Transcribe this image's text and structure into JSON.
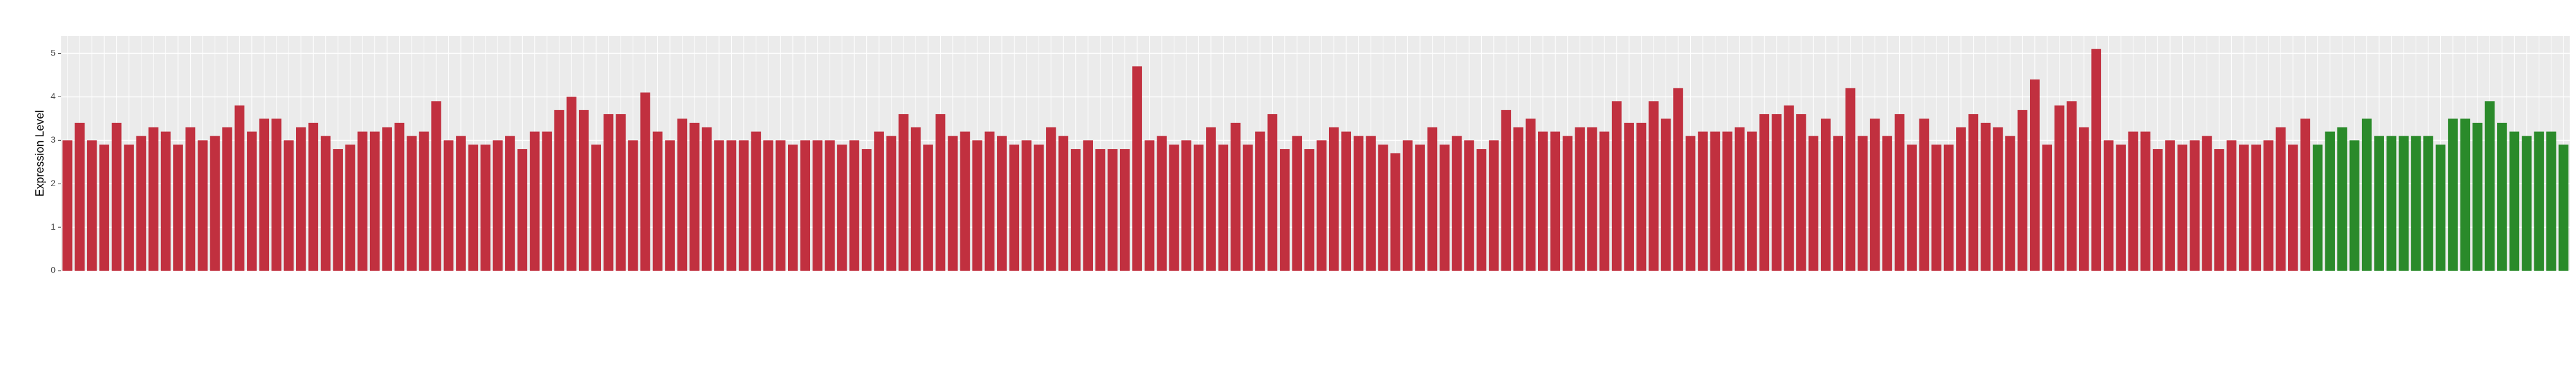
{
  "chart_data": {
    "type": "bar",
    "y_label": "Expression Level",
    "ylim": [
      0,
      5.4
    ],
    "yticks": [
      0,
      1,
      2,
      3,
      4,
      5
    ],
    "grid": true,
    "series": [
      {
        "color": "#c1303f",
        "values": [
          3.0,
          3.4,
          3.0,
          2.9,
          3.4,
          2.9,
          3.1,
          3.3,
          3.2,
          2.9,
          3.3,
          3.0,
          3.1,
          3.3,
          3.8,
          3.2,
          3.5,
          3.5,
          3.0,
          3.3,
          3.4,
          3.1,
          2.8,
          2.9,
          3.2,
          3.2,
          3.3,
          3.4,
          3.1,
          3.2,
          3.9,
          3.0,
          3.1,
          2.9,
          2.9,
          3.0,
          3.1,
          2.8,
          3.2,
          3.2,
          3.7,
          4.0,
          3.7,
          2.9,
          3.6,
          3.6,
          3.0,
          4.1,
          3.2,
          3.0,
          3.5,
          3.4,
          3.3,
          3.0,
          3.0,
          3.0,
          3.2,
          3.0,
          3.0,
          2.9,
          3.0,
          3.0,
          3.0,
          2.9,
          3.0,
          2.8,
          3.2,
          3.1,
          3.6,
          3.3,
          2.9,
          3.6,
          3.1,
          3.2,
          3.0,
          3.2,
          3.1,
          2.9,
          3.0,
          2.9,
          3.3,
          3.1,
          2.8,
          3.0,
          2.8,
          2.8,
          2.8,
          4.7,
          3.0,
          3.1,
          2.9,
          3.0,
          2.9,
          3.3,
          2.9,
          3.4,
          2.9,
          3.2,
          3.6,
          2.8,
          3.1,
          2.8,
          3.0,
          3.3,
          3.2,
          3.1,
          3.1,
          2.9,
          2.7,
          3.0,
          2.9,
          3.3,
          2.9,
          3.1,
          3.0,
          2.8,
          3.0,
          3.7,
          3.3,
          3.5,
          3.2,
          3.2,
          3.1,
          3.3,
          3.3,
          3.2,
          3.9,
          3.4,
          3.4,
          3.9,
          3.5,
          4.2,
          3.1,
          3.2,
          3.2,
          3.2,
          3.3,
          3.2,
          3.6,
          3.6,
          3.8,
          3.6,
          3.1,
          3.5,
          3.1,
          4.2,
          3.1,
          3.5,
          3.1,
          3.6,
          2.9,
          3.5,
          2.9,
          2.9,
          3.3,
          3.6,
          3.4,
          3.3,
          3.1,
          3.7,
          4.4,
          2.9,
          3.8,
          3.9,
          3.3,
          5.1,
          3.0,
          2.9,
          3.2,
          3.2,
          2.8,
          3.0,
          2.9,
          3.0,
          3.1,
          2.8,
          3.0,
          2.9,
          2.9,
          3.0,
          3.3,
          2.9,
          3.5
        ]
      },
      {
        "color": "#2a8a2a",
        "values": [
          2.9,
          3.2,
          3.3,
          3.0,
          3.5,
          3.1,
          3.1,
          3.1,
          3.1,
          3.1,
          2.9,
          3.5,
          3.5,
          3.4,
          3.9,
          3.4,
          3.2,
          3.1,
          3.2,
          3.2,
          2.9
        ]
      }
    ]
  }
}
